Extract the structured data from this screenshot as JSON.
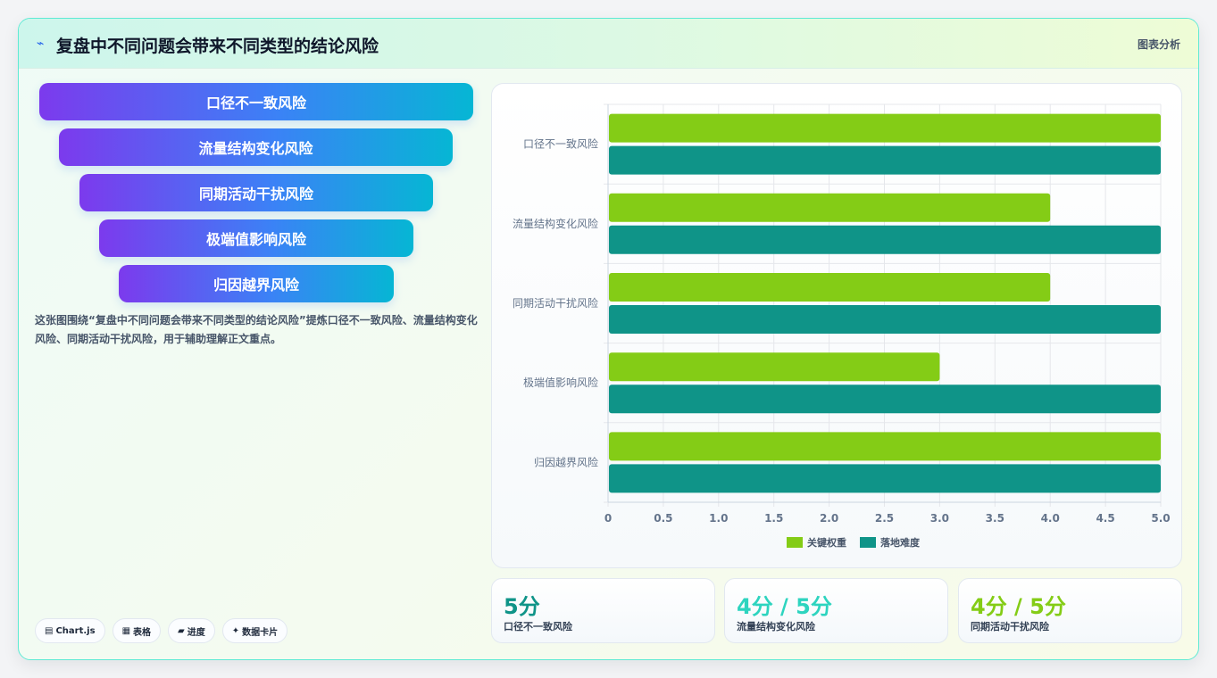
{
  "header": {
    "title": "复盘中不同问题会带来不同类型的结论风险",
    "tag": "图表分析"
  },
  "funnel": [
    "口径不一致风险",
    "流量结构变化风险",
    "同期活动干扰风险",
    "极端值影响风险",
    "归因越界风险"
  ],
  "description": "这张图围绕“复盘中不同问题会带来不同类型的结论风险”提炼口径不一致风险、流量结构变化风险、同期活动干扰风险，用于辅助理解正文重点。",
  "chips": [
    {
      "icon": "chart-icon",
      "glyph": "▤",
      "label": "Chart.js"
    },
    {
      "icon": "table-icon",
      "glyph": "▦",
      "label": "表格"
    },
    {
      "icon": "progress-icon",
      "glyph": "▰",
      "label": "进度"
    },
    {
      "icon": "sparkle-icon",
      "glyph": "✦",
      "label": "数据卡片"
    }
  ],
  "chart_data": {
    "type": "bar",
    "orientation": "horizontal",
    "categories": [
      "口径不一致风险",
      "流量结构变化风险",
      "同期活动干扰风险",
      "极端值影响风险",
      "归因越界风险"
    ],
    "series": [
      {
        "name": "关键权重",
        "color": "#84cc16",
        "values": [
          5,
          4,
          4,
          3,
          5
        ]
      },
      {
        "name": "落地难度",
        "color": "#0f9488",
        "values": [
          5,
          5,
          5,
          5,
          5
        ]
      }
    ],
    "xlim": [
      0,
      5
    ],
    "xticks": [
      "0",
      "0.5",
      "1.0",
      "1.5",
      "2.0",
      "2.5",
      "3.0",
      "3.5",
      "4.0",
      "4.5",
      "5.0"
    ],
    "grid": true,
    "legend": "bottom"
  },
  "stats": [
    {
      "value": "5分",
      "label": "口径不一致风险",
      "color": "#0f9488"
    },
    {
      "value": "4分 / 5分",
      "label": "流量结构变化风险",
      "color": "#2dd4bf"
    },
    {
      "value": "4分 / 5分",
      "label": "同期活动干扰风险",
      "color": "#84cc16"
    }
  ]
}
